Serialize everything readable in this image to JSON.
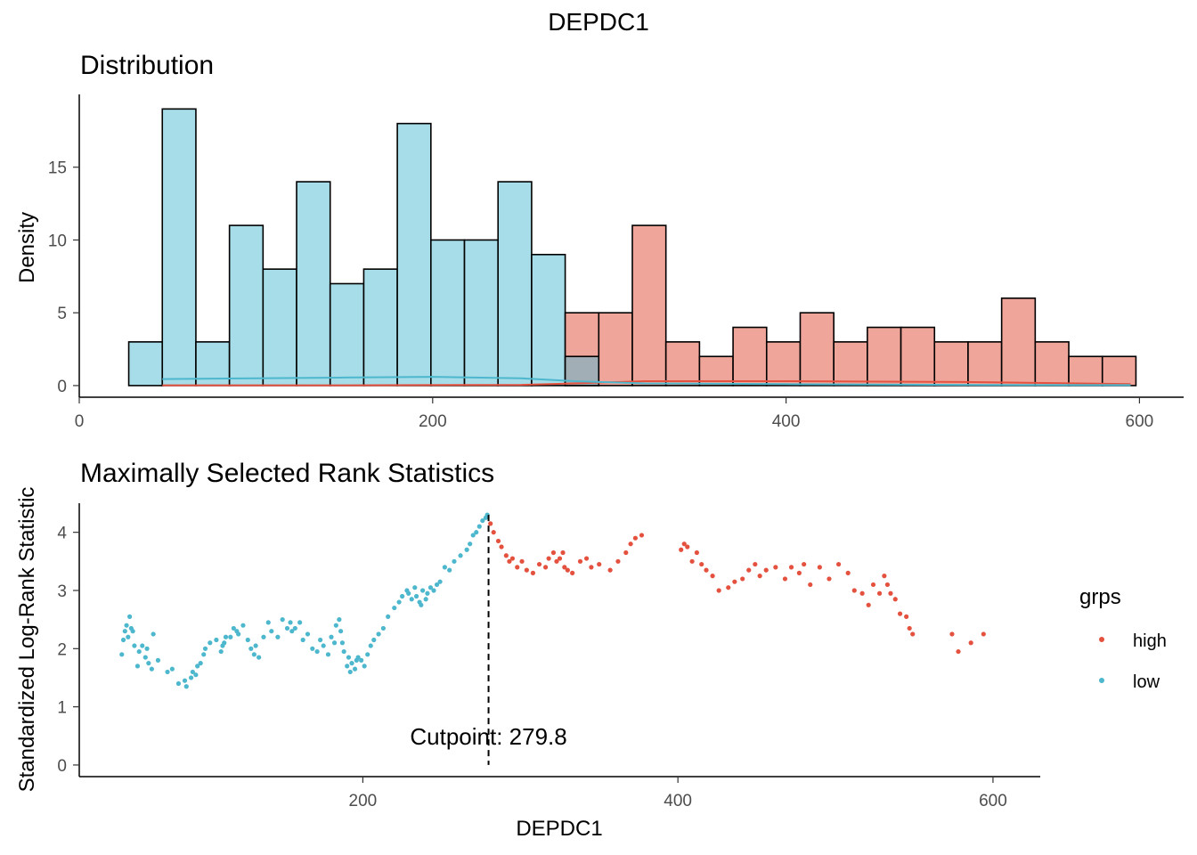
{
  "title": "DEPDC1",
  "colors": {
    "high": "#E4523F",
    "low": "#4DB7CD",
    "high_fill": "#F0A59A",
    "low_fill": "#A6DDE8",
    "overlap_fill": "#A1AEB6"
  },
  "chart_data": [
    {
      "type": "bar",
      "subtype": "histogram",
      "title": "Distribution",
      "xlabel": "",
      "ylabel": "Density",
      "xlim": [
        0,
        625
      ],
      "ylim": [
        -0.8,
        20
      ],
      "xticks": [
        0,
        200,
        400,
        600
      ],
      "yticks": [
        0,
        5,
        10,
        15
      ],
      "bin_width": 19,
      "bin_edges": [
        28,
        47,
        66,
        85,
        104,
        123,
        142,
        161,
        180,
        199,
        218,
        237,
        256,
        275,
        294,
        313,
        332,
        351,
        370,
        389,
        408,
        427,
        446,
        465,
        484,
        503,
        522,
        541,
        560,
        579,
        598
      ],
      "series": [
        {
          "name": "low",
          "values": [
            3,
            19,
            3,
            11,
            8,
            14,
            7,
            8,
            18,
            10,
            10,
            14,
            9,
            2,
            0,
            0,
            0,
            0,
            0,
            0,
            0,
            0,
            0,
            0,
            0,
            0,
            0,
            0,
            0,
            0
          ]
        },
        {
          "name": "high",
          "values": [
            0,
            0,
            0,
            0,
            0,
            0,
            0,
            0,
            0,
            0,
            0,
            0,
            0,
            5,
            5,
            11,
            3,
            2,
            4,
            3,
            5,
            3,
            4,
            4,
            3,
            3,
            6,
            3,
            2,
            2
          ]
        }
      ],
      "density_curves": {
        "low": {
          "x": [
            47,
            100,
            150,
            200,
            250,
            280,
            320,
            400,
            500,
            595
          ],
          "y": [
            0.45,
            0.5,
            0.55,
            0.6,
            0.5,
            0.3,
            0.15,
            0.1,
            0.05,
            0.03
          ]
        },
        "high": {
          "x": [
            47,
            150,
            250,
            280,
            320,
            400,
            500,
            595
          ],
          "y": [
            0.02,
            0.02,
            0.05,
            0.15,
            0.3,
            0.3,
            0.25,
            0.1
          ]
        }
      },
      "grid": false
    },
    {
      "type": "scatter",
      "title": "Maximally Selected Rank Statistics",
      "xlabel": "DEPDC1",
      "ylabel": "Standardized Log-Rank Statistic",
      "xlim": [
        20,
        630
      ],
      "ylim": [
        -0.2,
        4.5
      ],
      "xticks": [
        200,
        400,
        600
      ],
      "yticks": [
        0,
        1,
        2,
        3,
        4
      ],
      "cutpoint": 279.8,
      "annotation": "Cutpoint: 279.8",
      "legend": {
        "title": "grps",
        "position": "right",
        "entries": [
          "high",
          "low"
        ]
      },
      "series": [
        {
          "name": "low",
          "x": [
            47,
            48,
            49,
            50,
            51,
            52,
            53,
            54,
            55,
            57,
            58,
            60,
            62,
            63,
            64,
            66,
            67,
            70,
            76,
            79,
            83,
            87,
            88,
            91,
            92,
            94,
            95,
            97,
            99,
            100,
            103,
            107,
            110,
            111,
            112,
            113,
            116,
            118,
            120,
            121,
            124,
            127,
            129,
            131,
            132,
            134,
            137,
            140,
            142,
            146,
            149,
            152,
            154,
            155,
            157,
            160,
            162,
            165,
            168,
            171,
            173,
            175,
            178,
            180,
            182,
            183,
            185,
            186,
            187,
            188,
            190,
            191,
            192,
            193,
            195,
            196,
            197,
            199,
            201,
            203,
            205,
            207,
            210,
            213,
            216,
            220,
            223,
            225,
            228,
            229,
            231,
            233,
            234,
            236,
            237,
            238,
            240,
            241,
            243,
            245,
            247,
            249,
            252,
            255,
            258,
            262,
            266,
            268,
            270,
            272,
            274,
            276,
            278,
            279
          ],
          "y": [
            1.9,
            2.15,
            2.3,
            2.4,
            2.2,
            2.55,
            2.35,
            2.3,
            2.05,
            1.7,
            1.95,
            2.05,
            1.85,
            2.0,
            1.75,
            1.65,
            2.25,
            1.8,
            1.6,
            1.65,
            1.4,
            1.45,
            1.35,
            1.5,
            1.6,
            1.55,
            1.7,
            1.75,
            1.9,
            2.0,
            2.1,
            2.15,
            1.95,
            2.05,
            2.1,
            2.2,
            2.2,
            2.35,
            2.3,
            2.25,
            2.4,
            2.15,
            2.0,
            1.9,
            2.05,
            1.85,
            2.2,
            2.45,
            2.3,
            2.2,
            2.5,
            2.35,
            2.45,
            2.3,
            2.35,
            2.45,
            2.15,
            2.25,
            2.0,
            1.95,
            2.15,
            2.05,
            1.9,
            2.2,
            2.1,
            2.4,
            2.5,
            2.3,
            2.1,
            1.95,
            1.7,
            1.85,
            1.6,
            1.75,
            1.65,
            1.8,
            1.85,
            1.8,
            1.7,
            1.9,
            2.05,
            2.15,
            2.25,
            2.35,
            2.55,
            2.7,
            2.8,
            2.9,
            3.0,
            2.95,
            2.85,
            3.05,
            2.9,
            2.8,
            2.75,
            3.0,
            2.85,
            2.95,
            3.05,
            3.0,
            3.1,
            3.15,
            3.4,
            3.35,
            3.5,
            3.6,
            3.7,
            3.8,
            3.95,
            4.0,
            4.1,
            4.2,
            4.25,
            4.3
          ]
        },
        {
          "name": "high",
          "x": [
            281,
            283,
            286,
            288,
            291,
            293,
            295,
            298,
            301,
            304,
            308,
            312,
            316,
            318,
            321,
            323,
            325,
            327,
            328,
            330,
            333,
            338,
            342,
            345,
            350,
            357,
            362,
            367,
            370,
            373,
            377,
            402,
            404,
            406,
            409,
            412,
            415,
            418,
            422,
            426,
            432,
            436,
            441,
            445,
            449,
            452,
            456,
            462,
            468,
            472,
            477,
            480,
            484,
            490,
            496,
            502,
            508,
            512,
            517,
            521,
            524,
            528,
            531,
            533,
            535,
            538,
            541,
            545,
            547,
            549,
            574,
            578,
            586,
            594
          ],
          "y": [
            4.15,
            4.0,
            3.85,
            3.75,
            3.6,
            3.5,
            3.55,
            3.4,
            3.5,
            3.35,
            3.3,
            3.45,
            3.4,
            3.55,
            3.65,
            3.5,
            3.55,
            3.65,
            3.4,
            3.35,
            3.3,
            3.5,
            3.55,
            3.4,
            3.45,
            3.35,
            3.5,
            3.65,
            3.8,
            3.9,
            3.95,
            3.7,
            3.8,
            3.75,
            3.5,
            3.65,
            3.45,
            3.35,
            3.25,
            3.0,
            3.05,
            3.15,
            3.2,
            3.35,
            3.45,
            3.25,
            3.35,
            3.4,
            3.2,
            3.4,
            3.3,
            3.45,
            3.1,
            3.4,
            3.2,
            3.45,
            3.3,
            3.0,
            2.95,
            2.75,
            3.1,
            2.95,
            3.25,
            3.1,
            2.95,
            2.85,
            2.6,
            2.55,
            2.35,
            2.25,
            2.25,
            1.95,
            2.1,
            2.25
          ]
        }
      ]
    }
  ]
}
